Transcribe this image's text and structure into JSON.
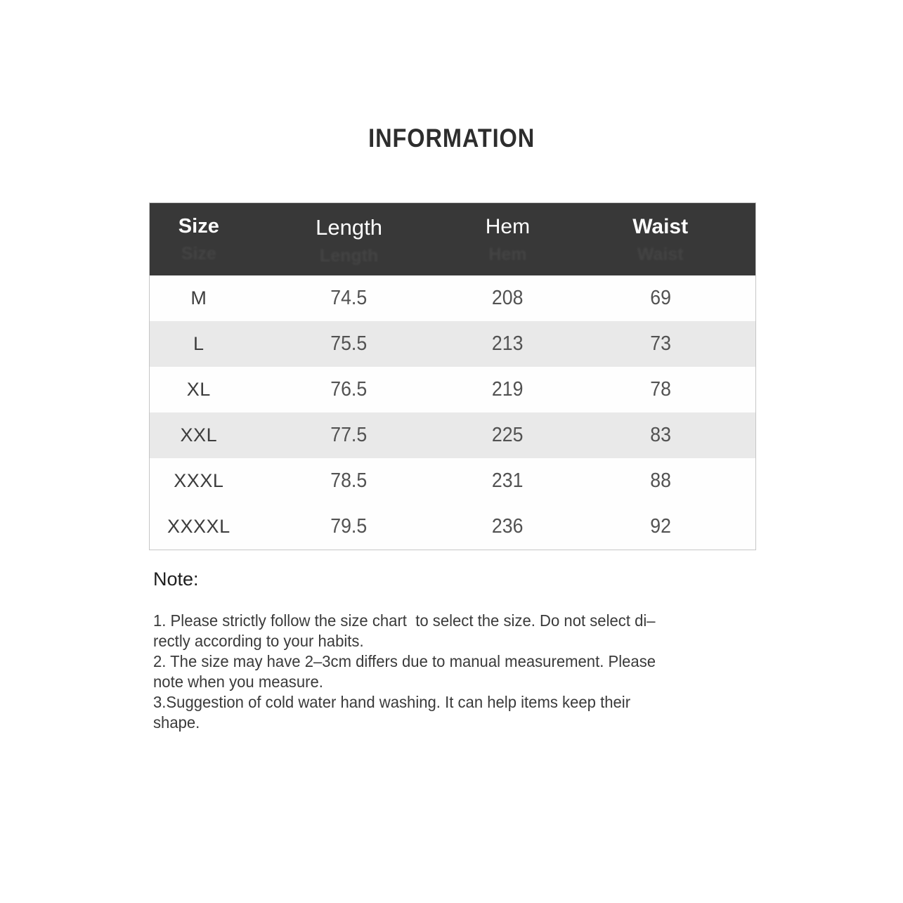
{
  "title": "INFORMATION",
  "size_table": {
    "headers": {
      "size": "Size",
      "length": "Length",
      "hem": "Hem",
      "waist": "Waist"
    },
    "rows": [
      {
        "size": "M",
        "length": "74.5",
        "hem": "208",
        "waist": "69"
      },
      {
        "size": "L",
        "length": "75.5",
        "hem": "213",
        "waist": "73"
      },
      {
        "size": "XL",
        "length": "76.5",
        "hem": "219",
        "waist": "78"
      },
      {
        "size": "XXL",
        "length": "77.5",
        "hem": "225",
        "waist": "83"
      },
      {
        "size": "XXXL",
        "length": "78.5",
        "hem": "231",
        "waist": "88"
      },
      {
        "size": "XXXXL",
        "length": "79.5",
        "hem": "236",
        "waist": "92"
      }
    ]
  },
  "note": {
    "heading": "Note:",
    "lines": [
      "1. Please strictly follow the size chart  to select the size. Do not select di–",
      "rectly according to your habits.",
      "2. The size may have 2–3cm differs due to manual measurement. Please",
      "note when you measure.",
      "3.Suggestion of cold water hand washing. It can help items keep their",
      "shape."
    ]
  },
  "colors": {
    "header_bg": "#383838",
    "header_text": "#fdfdfd",
    "row_shaded_bg": "#e9e9e9",
    "row_plain_bg": "#fefefe",
    "table_border": "#c6c6c6",
    "title_text": "#2d2d2d",
    "cell_text": "#525252",
    "note_text": "#3a3a3a"
  }
}
